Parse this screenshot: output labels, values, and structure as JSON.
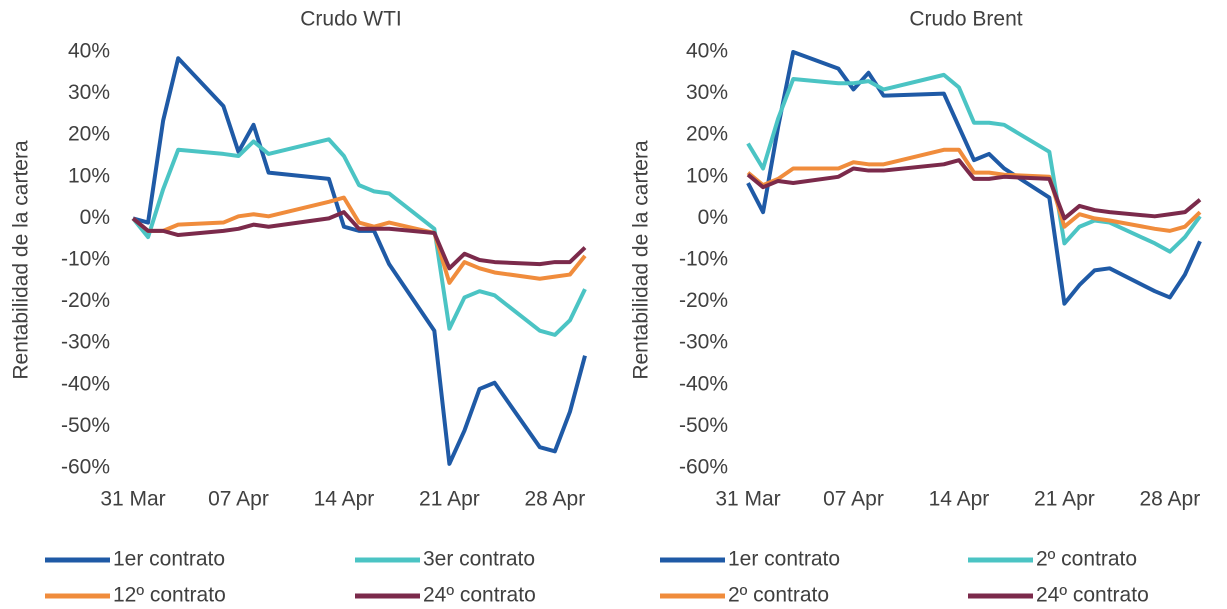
{
  "chart_data": [
    {
      "type": "line",
      "title": "Crudo WTI",
      "y_label": "Rentabilidad de la cartera",
      "x": [
        0,
        1,
        2,
        3,
        6,
        7,
        8,
        9,
        13,
        14,
        15,
        16,
        17,
        20,
        21,
        22,
        23,
        24,
        27,
        28,
        29,
        30
      ],
      "xlim": [
        0,
        30
      ],
      "xticks": [
        {
          "value": 0,
          "label": "31 Mar"
        },
        {
          "value": 7,
          "label": "07 Apr"
        },
        {
          "value": 14,
          "label": "14 Apr"
        },
        {
          "value": 21,
          "label": "21 Apr"
        },
        {
          "value": 28,
          "label": "28 Apr"
        }
      ],
      "ylim": [
        -60,
        40
      ],
      "yticks": [
        {
          "value": 40,
          "label": "40%"
        },
        {
          "value": 30,
          "label": "30%"
        },
        {
          "value": 20,
          "label": "20%"
        },
        {
          "value": 10,
          "label": "10%"
        },
        {
          "value": 0,
          "label": "0%"
        },
        {
          "value": -10,
          "label": "-10%"
        },
        {
          "value": -20,
          "label": "-20%"
        },
        {
          "value": -30,
          "label": "-30%"
        },
        {
          "value": -40,
          "label": "-40%"
        },
        {
          "value": -50,
          "label": "-50%"
        },
        {
          "value": -60,
          "label": "-60%"
        }
      ],
      "series": [
        {
          "name": "1er contrato",
          "color": "#1f5aa6",
          "values": [
            0,
            -1,
            23.5,
            38.5,
            27,
            16,
            22.5,
            11,
            9.5,
            -2,
            -3,
            -3,
            -11,
            -27,
            -59,
            -51,
            -41,
            -39.5,
            -55,
            -56,
            -46.5,
            -33
          ]
        },
        {
          "name": "3er contrato",
          "color": "#4bc4c4",
          "values": [
            0,
            -4.5,
            7,
            16.5,
            15.5,
            15,
            18.5,
            15.5,
            19,
            15,
            8,
            6.5,
            6,
            -2.5,
            -26.5,
            -19,
            -17.5,
            -18.5,
            -27,
            -28,
            -24.5,
            -17
          ]
        },
        {
          "name": "12º contrato",
          "color": "#f08c3c",
          "values": [
            0,
            -3,
            -3,
            -1.5,
            -1,
            0.5,
            1,
            0.5,
            4,
            5,
            -1,
            -2,
            -1,
            -3.5,
            -15.5,
            -10.5,
            -12,
            -13,
            -14.5,
            -14,
            -13.5,
            -9
          ]
        },
        {
          "name": "24º contrato",
          "color": "#7b2a4b",
          "values": [
            0,
            -3,
            -3,
            -4,
            -3,
            -2.5,
            -1.5,
            -2,
            0,
            1.5,
            -2.5,
            -2.5,
            -2.5,
            -3.5,
            -12,
            -8.5,
            -10,
            -10.5,
            -11,
            -10.5,
            -10.5,
            -7
          ]
        }
      ]
    },
    {
      "type": "line",
      "title": "Crudo Brent",
      "y_label": "Rentabilidad de la cartera",
      "x": [
        0,
        1,
        2,
        3,
        6,
        7,
        8,
        9,
        13,
        14,
        15,
        16,
        17,
        20,
        21,
        22,
        23,
        24,
        27,
        28,
        29,
        30
      ],
      "xlim": [
        0,
        30
      ],
      "xticks": [
        {
          "value": 0,
          "label": "31 Mar"
        },
        {
          "value": 7,
          "label": "07 Apr"
        },
        {
          "value": 14,
          "label": "14 Apr"
        },
        {
          "value": 21,
          "label": "21 Apr"
        },
        {
          "value": 28,
          "label": "28 Apr"
        }
      ],
      "ylim": [
        -60,
        40
      ],
      "yticks": [
        {
          "value": 40,
          "label": "40%"
        },
        {
          "value": 30,
          "label": "30%"
        },
        {
          "value": 20,
          "label": "20%"
        },
        {
          "value": 10,
          "label": "10%"
        },
        {
          "value": 0,
          "label": "0%"
        },
        {
          "value": -10,
          "label": "-10%"
        },
        {
          "value": -20,
          "label": "-20%"
        },
        {
          "value": -30,
          "label": "-30%"
        },
        {
          "value": -40,
          "label": "-40%"
        },
        {
          "value": -50,
          "label": "-50%"
        },
        {
          "value": -60,
          "label": "-60%"
        }
      ],
      "series": [
        {
          "name": "1er contrato",
          "color": "#1f5aa6",
          "values": [
            8.5,
            1.5,
            22,
            40,
            36,
            31,
            35,
            29.5,
            30,
            22,
            14,
            15.5,
            12,
            5,
            -20.5,
            -16,
            -12.5,
            -12,
            -17.5,
            -19,
            -13.5,
            -5.5
          ]
        },
        {
          "name": "2º contrato",
          "color": "#4bc4c4",
          "values": [
            18,
            12,
            24,
            33.5,
            32.5,
            32.5,
            33,
            31,
            34.5,
            31.5,
            23,
            23,
            22.5,
            16,
            -6,
            -2,
            -0.5,
            -1,
            -6,
            -8,
            -4.5,
            0.5
          ]
        },
        {
          "name": "2º contrato",
          "color": "#f08c3c",
          "values": [
            11,
            8,
            9.5,
            12,
            12,
            13.5,
            13,
            13,
            16.5,
            16.5,
            11,
            11,
            10.5,
            10,
            -2,
            1,
            0,
            -0.5,
            -2.5,
            -3,
            -2,
            1.5
          ]
        },
        {
          "name": "24º contrato",
          "color": "#7b2a4b",
          "values": [
            10.5,
            7.5,
            9,
            8.5,
            10,
            12,
            11.5,
            11.5,
            13,
            14,
            9.5,
            9.5,
            10,
            9.5,
            0,
            3,
            2,
            1.5,
            0.5,
            1,
            1.5,
            4.5
          ]
        }
      ]
    }
  ]
}
